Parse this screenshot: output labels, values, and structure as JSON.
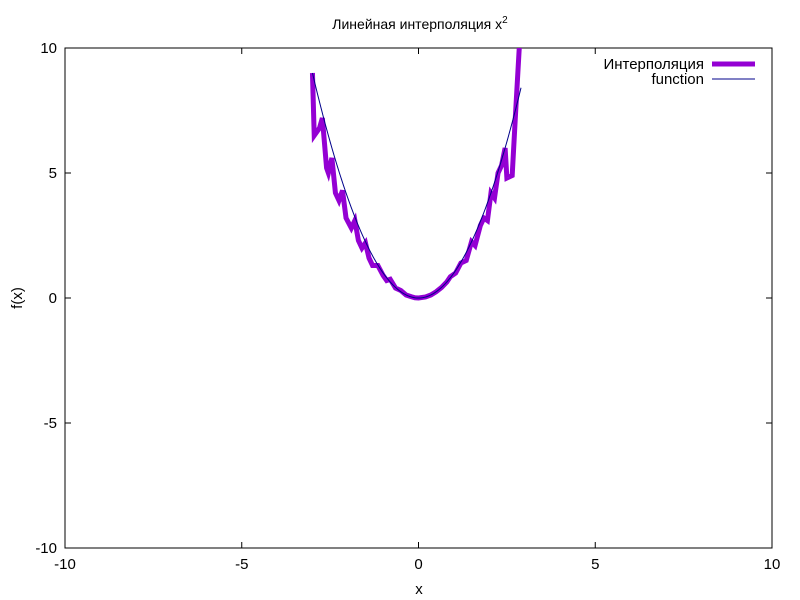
{
  "chart_data": {
    "type": "line",
    "title": "Линейная интерполяция x",
    "title_superscript": "2",
    "xlabel": "x",
    "ylabel": "f(x)",
    "xlim": [
      -10,
      10
    ],
    "ylim": [
      -10,
      10
    ],
    "x_ticks": [
      -10,
      -5,
      0,
      5,
      10
    ],
    "y_ticks": [
      -10,
      -5,
      0,
      5,
      10
    ],
    "grid": false,
    "legend_position": "top-right",
    "series": [
      {
        "name": "Интерполяция",
        "color": "#9400d3",
        "points": [
          [
            -3.0,
            9.0
          ],
          [
            -2.95,
            6.5
          ],
          [
            -2.8,
            6.8
          ],
          [
            -2.72,
            7.2
          ],
          [
            -2.6,
            5.2
          ],
          [
            -2.55,
            5.0
          ],
          [
            -2.45,
            5.6
          ],
          [
            -2.35,
            4.2
          ],
          [
            -2.25,
            3.9
          ],
          [
            -2.15,
            4.3
          ],
          [
            -2.05,
            3.2
          ],
          [
            -1.9,
            2.8
          ],
          [
            -1.8,
            3.1
          ],
          [
            -1.7,
            2.3
          ],
          [
            -1.6,
            2.0
          ],
          [
            -1.5,
            2.2
          ],
          [
            -1.4,
            1.6
          ],
          [
            -1.3,
            1.3
          ],
          [
            -1.15,
            1.3
          ],
          [
            -1.0,
            0.9
          ],
          [
            -0.9,
            0.7
          ],
          [
            -0.8,
            0.75
          ],
          [
            -0.65,
            0.4
          ],
          [
            -0.5,
            0.3
          ],
          [
            -0.35,
            0.12
          ],
          [
            -0.2,
            0.05
          ],
          [
            -0.1,
            0.01
          ],
          [
            0.0,
            0.0
          ],
          [
            0.2,
            0.04
          ],
          [
            0.35,
            0.12
          ],
          [
            0.5,
            0.25
          ],
          [
            0.65,
            0.42
          ],
          [
            0.8,
            0.64
          ],
          [
            0.9,
            0.85
          ],
          [
            1.05,
            1.0
          ],
          [
            1.2,
            1.4
          ],
          [
            1.35,
            1.5
          ],
          [
            1.5,
            2.25
          ],
          [
            1.6,
            2.1
          ],
          [
            1.75,
            2.9
          ],
          [
            1.85,
            3.2
          ],
          [
            1.95,
            3.1
          ],
          [
            2.05,
            4.2
          ],
          [
            2.15,
            4.0
          ],
          [
            2.25,
            5.0
          ],
          [
            2.35,
            5.3
          ],
          [
            2.45,
            6.0
          ],
          [
            2.5,
            4.8
          ],
          [
            2.65,
            4.9
          ],
          [
            2.75,
            7.5
          ],
          [
            2.85,
            10.0
          ],
          [
            2.9,
            10.5
          ]
        ]
      },
      {
        "name": "function",
        "color": "#00008b",
        "function": "x^2",
        "x_range": [
          -3.0,
          2.9
        ]
      }
    ]
  }
}
